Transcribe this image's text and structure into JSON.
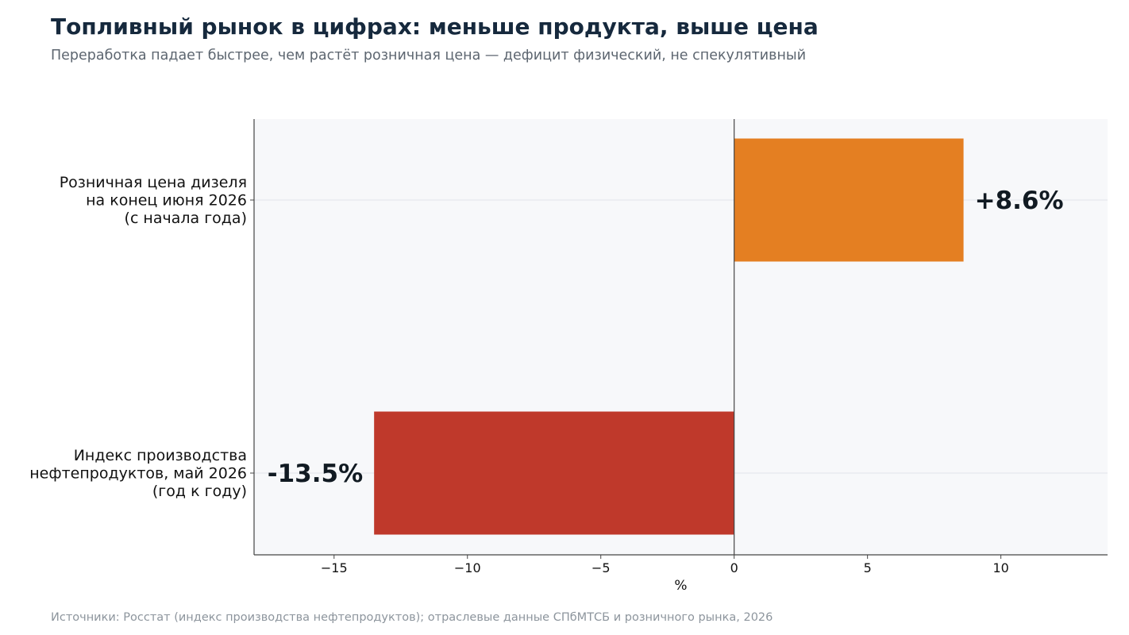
{
  "header": {
    "title": "Топливный рынок в цифрах: меньше продукта, выше цена",
    "subtitle": "Переработка падает быстрее, чем растёт розничная цена — дефицит физический, не спекулятивный"
  },
  "footer": {
    "source": "Источники: Росстат (индекс производства нефтепродуктов); отраслевые данные СПбМТСБ и розничного рынка, 2026"
  },
  "chart_data": {
    "type": "bar",
    "orientation": "horizontal",
    "categories": [
      [
        "Розничная цена дизеля",
        "на конец июня 2026",
        "(с начала года)"
      ],
      [
        "Индекс производства",
        "нефтепродуктов, май 2026",
        "(год к году)"
      ]
    ],
    "values": [
      8.6,
      -13.5
    ],
    "value_labels": [
      "+8.6%",
      "-13.5%"
    ],
    "colors": [
      "#e47f22",
      "#bf392b"
    ],
    "xlabel": "%",
    "ylabel": "",
    "xlim": [
      -18,
      14
    ],
    "xticks": [
      -15,
      -10,
      -5,
      0,
      5,
      10
    ],
    "xtick_labels": [
      "−15",
      "−10",
      "−5",
      "0",
      "5",
      "10"
    ],
    "grid": "horizontal",
    "plot_background": "#f7f8fa"
  }
}
